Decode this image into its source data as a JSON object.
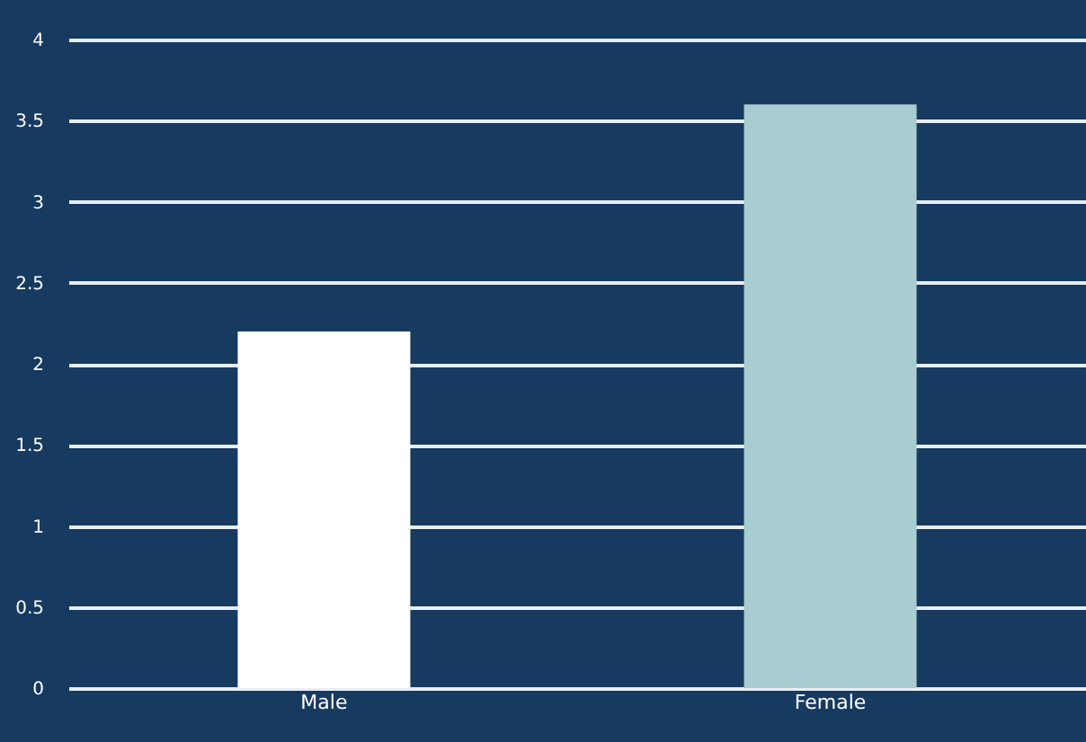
{
  "chart_data": {
    "type": "bar",
    "categories": [
      "Male",
      "Female"
    ],
    "values": [
      2.2,
      3.6
    ],
    "colors": [
      "#ffffff",
      "#a8ccd0"
    ],
    "ylim": [
      0,
      4
    ],
    "yticks": [
      0,
      0.5,
      1,
      1.5,
      2,
      2.5,
      3,
      3.5,
      4
    ],
    "grid": "y"
  }
}
